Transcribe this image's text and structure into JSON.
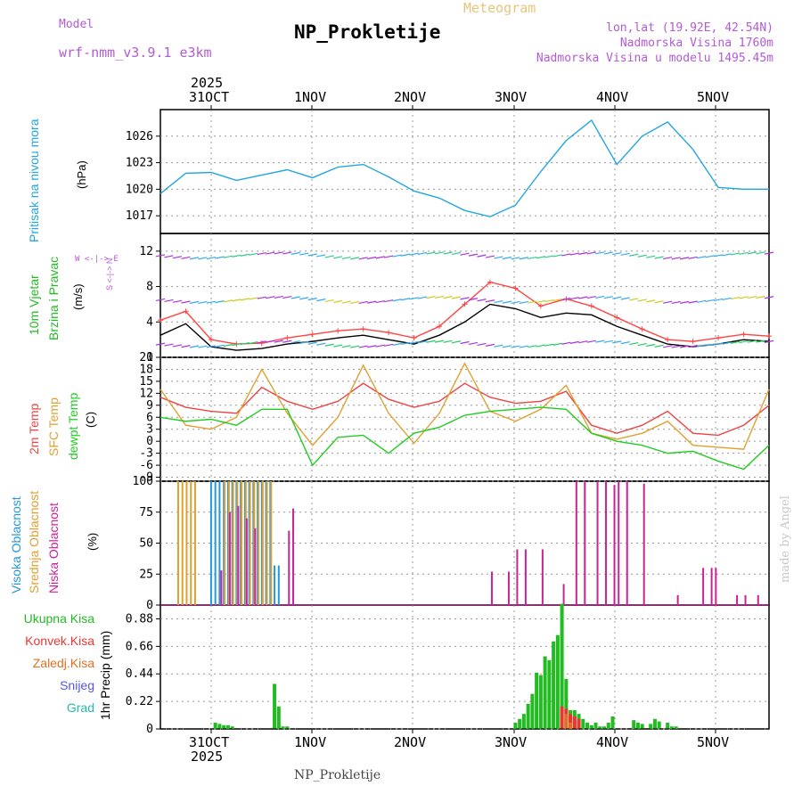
{
  "header": {
    "model_label": "Model",
    "model_name": "wrf-nmm_v3.9.1 e3km",
    "meteogram_label": "Meteogram",
    "station_title": "NP_Prokletije",
    "lonlat": "lon,lat (19.92E, 42.54N)",
    "altitude": "Nadmorska Visina 1760m",
    "model_altitude": "Nadmorska Visina u modelu 1495.45m"
  },
  "top_axis": {
    "year": "2025",
    "labels": [
      "31OCT",
      "1NOV",
      "2NOV",
      "3NOV",
      "4NOV",
      "5NOV"
    ]
  },
  "bottom_axis": {
    "year": "2025",
    "labels": [
      "31OCT",
      "1NOV",
      "2NOV",
      "3NOV",
      "4NOV",
      "5NOV"
    ]
  },
  "footer": "NP_Prokletije",
  "watermark": "made by Angel",
  "wind_compass": "W <-|-> E",
  "wind_compass_ns": "S <-|-> N",
  "colors": {
    "pressure": "#22a6e0",
    "speed": "#000000",
    "gust": "#ff4444",
    "t2m": "#ee4444",
    "sfc": "#e0a030",
    "dew": "#22cc22",
    "high": "#2299dd",
    "mid": "#e0a030",
    "low": "#cc2299",
    "rain": "#22bb22",
    "conv": "#ee3333",
    "ice": "#e07020",
    "snow": "#5555ee",
    "grad": "#22bbaa"
  },
  "chart_data": [
    {
      "type": "line",
      "title": "Pritisak na nivou mora",
      "ylabel": "(hPa)",
      "ylim": [
        1015,
        1029
      ],
      "yticks": [
        "1017",
        "1020",
        "1023",
        "1026"
      ],
      "x_hours": [
        0,
        6,
        12,
        18,
        24,
        30,
        36,
        42,
        48,
        54,
        60,
        66,
        72,
        78,
        84,
        90,
        96,
        102,
        108,
        114,
        120,
        126,
        132,
        138,
        144
      ],
      "values": [
        1019.5,
        1021.8,
        1021.9,
        1021.0,
        1021.6,
        1022.2,
        1021.3,
        1022.5,
        1022.8,
        1021.4,
        1019.8,
        1019.0,
        1017.6,
        1016.9,
        1018.2,
        1022.0,
        1025.5,
        1027.8,
        1022.8,
        1026.0,
        1027.6,
        1024.5,
        1020.2,
        1020.0,
        1020.0
      ]
    },
    {
      "type": "line",
      "title": "10m Vjetar Brzina i Pravac",
      "ylabel": "(m/s)",
      "ylim": [
        0,
        14
      ],
      "yticks": [
        "0",
        "4",
        "8",
        "12"
      ],
      "series": [
        {
          "name": "speed",
          "values": [
            2.5,
            3.8,
            1.2,
            0.8,
            1.0,
            1.5,
            1.8,
            2.2,
            2.5,
            2.0,
            1.5,
            2.5,
            4.0,
            6.0,
            5.5,
            4.5,
            5.0,
            4.8,
            3.5,
            2.5,
            1.5,
            1.2,
            1.5,
            2.0,
            1.8
          ]
        },
        {
          "name": "gust",
          "values": [
            4.2,
            5.2,
            2.0,
            1.5,
            1.6,
            2.2,
            2.6,
            3.0,
            3.2,
            2.8,
            2.2,
            3.5,
            6.0,
            8.5,
            7.8,
            5.8,
            6.6,
            5.8,
            4.5,
            3.2,
            2.0,
            1.8,
            2.2,
            2.6,
            2.4
          ]
        }
      ]
    },
    {
      "type": "line",
      "title": "2m Temp / SFC Temp / dewpt Temp",
      "ylabel": "(C)",
      "ylim": [
        -10,
        21
      ],
      "yticks": [
        "-9",
        "-6",
        "-3",
        "0",
        "3",
        "6",
        "9",
        "12",
        "15",
        "18",
        "21"
      ],
      "series": [
        {
          "name": "2m Temp",
          "values": [
            11,
            8.5,
            7.5,
            7.0,
            13.5,
            10.0,
            8.0,
            10.0,
            14.5,
            10.5,
            8.5,
            10.0,
            14.5,
            11.0,
            9.5,
            10.0,
            12.5,
            4.0,
            2.0,
            4.0,
            7.5,
            2.0,
            1.5,
            4.0,
            9.0
          ]
        },
        {
          "name": "SFC Temp",
          "values": [
            13,
            4.0,
            3.0,
            6.0,
            18.0,
            7.0,
            -1.0,
            6.0,
            19.0,
            7.0,
            -0.5,
            7.0,
            19.5,
            7.5,
            5.0,
            8.0,
            14.0,
            2.0,
            0.5,
            2.0,
            5.0,
            -1.0,
            -1.5,
            -2.0,
            13.0
          ]
        },
        {
          "name": "dewpt Temp",
          "values": [
            6.0,
            5.0,
            5.5,
            4.0,
            8.0,
            8.0,
            -6.0,
            1.0,
            1.5,
            -3.0,
            2.0,
            3.5,
            6.5,
            7.5,
            8.0,
            8.5,
            8.0,
            2.0,
            0.0,
            -1.0,
            -3.0,
            -2.5,
            -5.0,
            -7.0,
            -1.0
          ]
        }
      ]
    },
    {
      "type": "bar",
      "title": "Visoka / Srednja / Niska Oblacnost",
      "ylabel": "(%)",
      "ylim": [
        0,
        100
      ],
      "yticks": [
        "0",
        "25",
        "50",
        "75",
        "100"
      ],
      "series": [
        {
          "name": "Visoka Oblacnost",
          "x_hours": [
            12,
            13,
            14,
            15,
            16,
            17,
            18,
            19,
            20,
            21,
            22,
            23,
            24,
            25,
            26,
            27,
            28
          ],
          "values": [
            100,
            100,
            100,
            100,
            100,
            100,
            100,
            100,
            100,
            100,
            100,
            100,
            100,
            100,
            100,
            32,
            32
          ]
        },
        {
          "name": "Srednja Oblacnost",
          "x_hours": [
            4,
            5,
            6,
            7,
            8,
            15,
            16,
            17,
            18,
            19,
            20,
            21,
            22,
            23,
            24,
            25,
            26
          ],
          "values": [
            100,
            100,
            100,
            100,
            100,
            100,
            100,
            100,
            100,
            100,
            100,
            100,
            100,
            100,
            100,
            100,
            100
          ]
        },
        {
          "name": "Niska Oblacnost",
          "x_hours": [
            14,
            16,
            18,
            20,
            22,
            30,
            31,
            78,
            82,
            84,
            86,
            90,
            95,
            98,
            100,
            103,
            105,
            107,
            108,
            110,
            114,
            122,
            128,
            130,
            131,
            136,
            138,
            141
          ],
          "values": [
            28,
            75,
            80,
            70,
            62,
            60,
            78,
            27,
            27,
            45,
            45,
            45,
            17,
            100,
            100,
            100,
            100,
            97,
            100,
            100,
            98,
            8,
            30,
            30,
            30,
            8,
            8,
            8
          ]
        }
      ]
    },
    {
      "type": "bar",
      "title": "1hr Precip",
      "ylabel": "1hr Precip (mm)",
      "ylim": [
        0,
        0.99
      ],
      "yticks": [
        "0",
        "0.22",
        "0.44",
        "0.66",
        "0.88"
      ],
      "series": [
        {
          "name": "Ukupna Kisa",
          "x_hours": [
            13,
            14,
            15,
            16,
            17,
            27,
            28,
            29,
            30,
            84,
            85,
            86,
            87,
            88,
            89,
            90,
            91,
            92,
            93,
            94,
            95,
            96,
            97,
            98,
            99,
            100,
            101,
            102,
            103,
            104,
            105,
            106,
            107,
            112,
            113,
            114,
            116,
            117,
            118,
            120,
            121,
            122
          ],
          "values": [
            0.05,
            0.04,
            0.03,
            0.03,
            0.02,
            0.36,
            0.18,
            0.02,
            0.02,
            0.05,
            0.08,
            0.12,
            0.2,
            0.28,
            0.45,
            0.43,
            0.58,
            0.55,
            0.7,
            0.75,
            1.0,
            0.4,
            0.15,
            0.15,
            0.12,
            0.08,
            0.05,
            0.03,
            0.05,
            0.02,
            0.02,
            0.05,
            0.1,
            0.07,
            0.05,
            0.04,
            0.04,
            0.08,
            0.06,
            0.05,
            0.02,
            0.02
          ]
        },
        {
          "name": "Konvek.Kisa",
          "x_hours": [
            95,
            96,
            97,
            98,
            99
          ],
          "values": [
            0.18,
            0.16,
            0.12,
            0.1,
            0.08
          ]
        },
        {
          "name": "Zaledj.Kisa",
          "x_hours": [
            96,
            97
          ],
          "values": [
            0.12,
            0.05
          ]
        },
        {
          "name": "Snijeg",
          "x_hours": [],
          "values": []
        },
        {
          "name": "Grad",
          "x_hours": [],
          "values": []
        }
      ]
    }
  ],
  "panel_labels": {
    "pressure": "Pritisak na nivou mora",
    "pressure_unit": "(hPa)",
    "wind1": "10m Vjetar",
    "wind2": "Brzina i Pravac",
    "wind_unit": "(m/s)",
    "t1": "2m Temp",
    "t2": "SFC Temp",
    "t3": "dewpt Temp",
    "t_unit": "(C)",
    "c1": "Visoka Oblacnost",
    "c2": "Srednja Oblacnost",
    "c3": "Niska Oblacnost",
    "c_unit": "(%)",
    "p_unit": "1hr Precip (mm)",
    "rain": "Ukupna Kisa",
    "conv": "Konvek.Kisa",
    "ice": "Zaledj.Kisa",
    "snow": "Snijeg",
    "grad": "Grad"
  }
}
